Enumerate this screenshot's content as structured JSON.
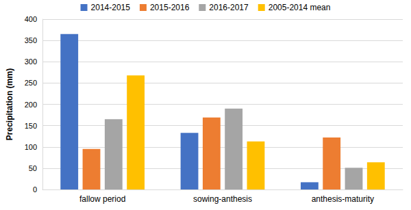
{
  "chart_data": {
    "type": "bar",
    "y_label": "Precipitation (mm)",
    "categories": [
      "fallow period",
      "sowing-anthesis",
      "anthesis-maturity"
    ],
    "series": [
      {
        "name": "2014-2015",
        "color": "#4472c4",
        "values": [
          365,
          133,
          17
        ]
      },
      {
        "name": "2015-2016",
        "color": "#ed7d31",
        "values": [
          95,
          169,
          122
        ]
      },
      {
        "name": "2016-2017",
        "color": "#a5a5a5",
        "values": [
          165,
          190,
          51
        ]
      },
      {
        "name": "2005-2014 mean",
        "color": "#ffc000",
        "values": [
          268,
          113,
          64
        ]
      }
    ],
    "ylim": [
      0,
      400
    ],
    "yticks": [
      0,
      50,
      100,
      150,
      200,
      250,
      300,
      350,
      400
    ],
    "grid": true,
    "legend": "top"
  }
}
